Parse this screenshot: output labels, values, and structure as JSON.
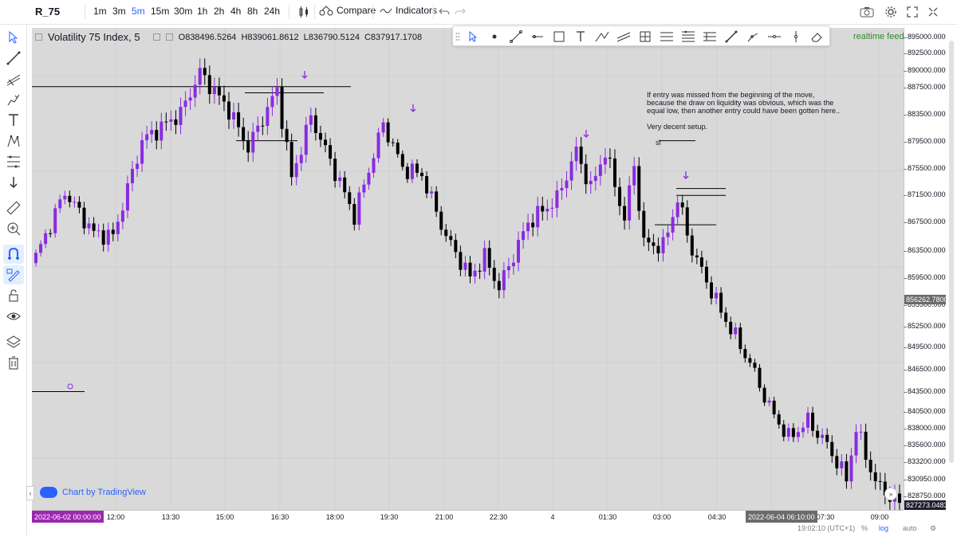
{
  "toolbar": {
    "symbol": "R_75",
    "timeframes": [
      "1m",
      "3m",
      "5m",
      "15m",
      "30m",
      "1h",
      "2h",
      "4h",
      "8h",
      "24h"
    ],
    "active_timeframe": "5m",
    "compare_label": "Compare",
    "indicators_label": "Indicators"
  },
  "legend": {
    "title": "Volatility 75 Index, 5",
    "open": "O838496.5264",
    "high": "H839061.8612",
    "low": "L836790.5124",
    "close": "C837917.1708"
  },
  "realtime_label": "realtime feed",
  "price_axis": {
    "labels": [
      "895000.0000",
      "892500.0000",
      "890000.0000",
      "887500.0000",
      "883500.0000",
      "879500.0000",
      "875500.0000",
      "871500.0000",
      "867500.0000",
      "863500.0000",
      "859500.0000",
      "855500.0000",
      "852500.0000",
      "849500.0000",
      "846500.0000",
      "843500.0000",
      "840500.0000",
      "838000.0000",
      "835600.0000",
      "833200.0000",
      "830950.0000",
      "828750.0000"
    ],
    "crosshair_price": "856262.7800",
    "last_price": "827273.0483"
  },
  "time_axis": {
    "labels": [
      "12:00",
      "13:30",
      "15:00",
      "16:30",
      "18:00",
      "19:30",
      "21:00",
      "22:30",
      "4",
      "01:30",
      "03:00",
      "04:30",
      "07:30",
      "09:00"
    ],
    "start_marker": "2022-06-02 00:00:00",
    "crosshair_marker": "2022-06-04 06:10:00"
  },
  "status": {
    "clock": "19:02:10 (UTC+1)",
    "percent": "%",
    "log": "log",
    "auto": "auto"
  },
  "watermark": "Chart by TradingView",
  "annotation": "If entry was missed from the beginning of the move,\nbecause the draw on liquidity was obvious, which was the\nequal low, then another entry could have been gotten here..\n\nVery decent setup.",
  "sl_label": "sl",
  "colors": {
    "bull": "#8a2be2",
    "bear": "#000000",
    "chart_bg": "#d9d9d9",
    "arrow": "#8a2be2"
  },
  "chart_data": {
    "type": "candlestick",
    "title": "Volatility 75 Index, 5",
    "x_start": "2022-06-02 00:00:00",
    "y_range": [
      826000,
      896500
    ],
    "waypoints": [
      {
        "i": 0,
        "p": 863000
      },
      {
        "i": 6,
        "p": 872500
      },
      {
        "i": 12,
        "p": 866500
      },
      {
        "i": 16,
        "p": 866000
      },
      {
        "i": 22,
        "p": 880000
      },
      {
        "i": 30,
        "p": 884000
      },
      {
        "i": 34,
        "p": 890000
      },
      {
        "i": 40,
        "p": 884500
      },
      {
        "i": 44,
        "p": 879000
      },
      {
        "i": 50,
        "p": 887500
      },
      {
        "i": 53,
        "p": 874500
      },
      {
        "i": 57,
        "p": 883500
      },
      {
        "i": 66,
        "p": 869000
      },
      {
        "i": 72,
        "p": 882500
      },
      {
        "i": 76,
        "p": 876000
      },
      {
        "i": 80,
        "p": 875000
      },
      {
        "i": 85,
        "p": 866000
      },
      {
        "i": 90,
        "p": 860000
      },
      {
        "i": 93,
        "p": 863000
      },
      {
        "i": 96,
        "p": 858500
      },
      {
        "i": 102,
        "p": 868000
      },
      {
        "i": 108,
        "p": 871500
      },
      {
        "i": 112,
        "p": 878500
      },
      {
        "i": 115,
        "p": 873000
      },
      {
        "i": 118,
        "p": 878500
      },
      {
        "i": 122,
        "p": 868500
      },
      {
        "i": 124,
        "p": 876500
      },
      {
        "i": 126,
        "p": 865000
      },
      {
        "i": 130,
        "p": 864500
      },
      {
        "i": 133,
        "p": 871500
      },
      {
        "i": 136,
        "p": 864000
      },
      {
        "i": 142,
        "p": 855000
      },
      {
        "i": 148,
        "p": 847500
      },
      {
        "i": 152,
        "p": 841000
      },
      {
        "i": 156,
        "p": 836500
      },
      {
        "i": 160,
        "p": 839000
      },
      {
        "i": 164,
        "p": 835500
      },
      {
        "i": 168,
        "p": 830500
      },
      {
        "i": 170,
        "p": 838000
      },
      {
        "i": 174,
        "p": 830000
      },
      {
        "i": 178,
        "p": 827300
      }
    ]
  }
}
